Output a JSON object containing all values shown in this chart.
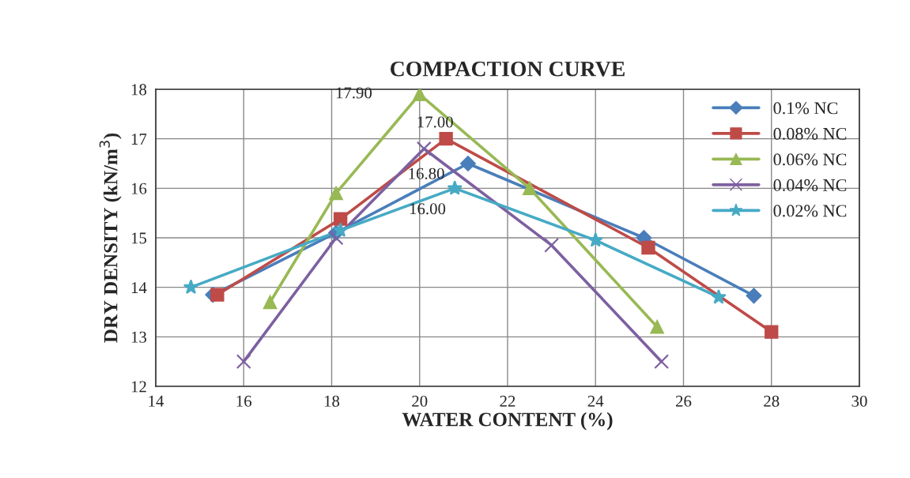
{
  "chart_data": {
    "type": "line",
    "title": "COMPACTION CURVE",
    "xlabel": "WATER CONTENT (%)",
    "ylabel": "DRY DENSITY (kN/m$^{3}$)",
    "xlim": [
      14,
      30
    ],
    "xticks": [
      14,
      16,
      18,
      20,
      22,
      24,
      26,
      28,
      30
    ],
    "ylim": [
      12,
      18
    ],
    "yticks": [
      12,
      13,
      14,
      15,
      16,
      17,
      18
    ],
    "grid": true,
    "legend": "top right",
    "series": [
      {
        "name": "0.1% NC",
        "color": "#4a7ebb",
        "marker": "diamond",
        "x": [
          15.3,
          18.1,
          21.1,
          25.1,
          27.6
        ],
        "values": [
          13.85,
          15.1,
          16.5,
          15.0,
          13.83
        ]
      },
      {
        "name": "0.08% NC",
        "color": "#be4b48",
        "marker": "square",
        "x": [
          15.4,
          18.2,
          20.6,
          25.2,
          28.0
        ],
        "values": [
          13.85,
          15.38,
          17.0,
          14.8,
          13.1
        ]
      },
      {
        "name": "0.06% NC",
        "color": "#98b954",
        "marker": "triangle",
        "x": [
          16.6,
          18.1,
          20.0,
          22.5,
          25.4
        ],
        "values": [
          13.7,
          15.9,
          17.9,
          16.0,
          13.2
        ]
      },
      {
        "name": "0.04% NC",
        "color": "#7d60a0",
        "marker": "cross",
        "x": [
          16.0,
          18.1,
          20.1,
          23.0,
          25.5
        ],
        "values": [
          12.5,
          15.0,
          16.8,
          14.85,
          12.5
        ]
      },
      {
        "name": "0.02% NC",
        "color": "#46aac5",
        "marker": "star",
        "x": [
          14.8,
          18.2,
          20.8,
          24.0,
          26.8
        ],
        "values": [
          14.0,
          15.15,
          16.0,
          14.95,
          13.8
        ]
      }
    ],
    "annotations": [
      {
        "text": "17.90",
        "x": 20.0,
        "y": 17.9
      },
      {
        "text": "17.00",
        "x": 20.6,
        "y": 17.0
      },
      {
        "text": "16.80",
        "x": 20.1,
        "y": 16.8
      },
      {
        "text": "16.00",
        "x": 20.8,
        "y": 16.0
      }
    ]
  }
}
